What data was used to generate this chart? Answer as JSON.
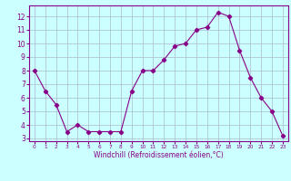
{
  "x": [
    0,
    1,
    2,
    3,
    4,
    5,
    6,
    7,
    8,
    9,
    10,
    11,
    12,
    13,
    14,
    15,
    16,
    17,
    18,
    19,
    20,
    21,
    22,
    23
  ],
  "y": [
    8.0,
    6.5,
    5.5,
    3.5,
    4.0,
    3.5,
    3.5,
    3.5,
    3.5,
    6.5,
    8.0,
    8.0,
    8.8,
    9.8,
    10.0,
    11.0,
    11.2,
    12.3,
    12.0,
    9.5,
    7.5,
    6.0,
    5.0,
    3.2
  ],
  "line_color": "#880088",
  "marker": "D",
  "marker_size": 2.2,
  "bg_color": "#ccffff",
  "grid_color": "#aabbcc",
  "xlabel": "Windchill (Refroidissement éolien,°C)",
  "xlim": [
    -0.5,
    23.5
  ],
  "ylim": [
    2.8,
    12.8
  ],
  "yticks": [
    3,
    4,
    5,
    6,
    7,
    8,
    9,
    10,
    11,
    12
  ],
  "xticks": [
    0,
    1,
    2,
    3,
    4,
    5,
    6,
    7,
    8,
    9,
    10,
    11,
    12,
    13,
    14,
    15,
    16,
    17,
    18,
    19,
    20,
    21,
    22,
    23
  ],
  "axis_label_color": "#880088",
  "tick_color": "#880088",
  "spine_color": "#880088"
}
